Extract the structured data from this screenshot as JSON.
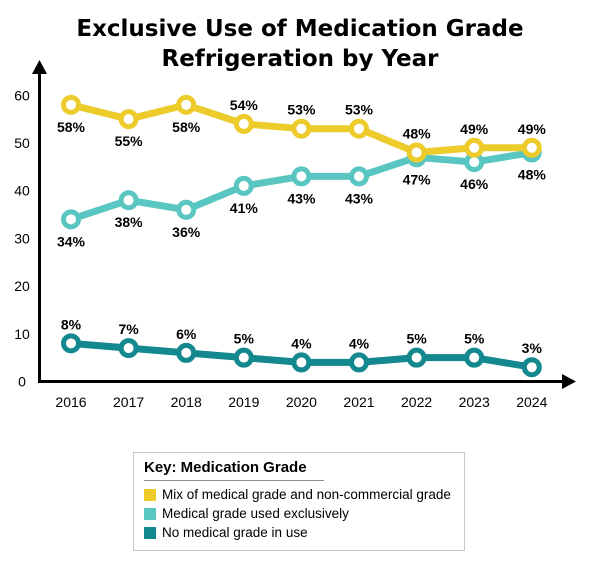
{
  "title_lines": [
    "Exclusive Use of Medication Grade",
    "Refrigeration by Year"
  ],
  "colors": {
    "mixed": "#eccb2a",
    "exclusive": "#5ac6c2",
    "none": "#13888f",
    "axis": "#000000"
  },
  "chart_data": {
    "type": "line",
    "title": "Exclusive Use of Medication Grade Refrigeration by Year",
    "x": [
      "2016",
      "2017",
      "2018",
      "2019",
      "2020",
      "2021",
      "2022",
      "2023",
      "2024"
    ],
    "y_ticks": [
      "0",
      "10",
      "20",
      "30",
      "40",
      "50",
      "60"
    ],
    "ylim": [
      0,
      60
    ],
    "grid": false,
    "legend_position": "bottom",
    "series": [
      {
        "key": "mixed",
        "name": "Mix of medical grade and non-commercial grade",
        "values": [
          58,
          55,
          58,
          54,
          53,
          53,
          48,
          49,
          49
        ],
        "labels": [
          "58%",
          "55%",
          "58%",
          "54%",
          "53%",
          "53%",
          "48%",
          "49%",
          "49%"
        ]
      },
      {
        "key": "exclusive",
        "name": "Medical grade used exclusively",
        "values": [
          34,
          38,
          36,
          41,
          43,
          43,
          47,
          46,
          48
        ],
        "labels": [
          "34%",
          "38%",
          "36%",
          "41%",
          "43%",
          "43%",
          "47%",
          "46%",
          "48%"
        ]
      },
      {
        "key": "none",
        "name": "No medical grade in use",
        "values": [
          8,
          7,
          6,
          5,
          4,
          4,
          5,
          5,
          3
        ],
        "labels": [
          "8%",
          "7%",
          "6%",
          "5%",
          "4%",
          "4%",
          "5%",
          "5%",
          "3%"
        ]
      }
    ]
  },
  "legend": {
    "title": "Key: Medication Grade",
    "items": [
      {
        "label": "Mix of medical grade and non-commercial grade",
        "color_key": "mixed"
      },
      {
        "label": "Medical grade used exclusively",
        "color_key": "exclusive"
      },
      {
        "label": "No medical grade in use",
        "color_key": "none"
      }
    ]
  }
}
